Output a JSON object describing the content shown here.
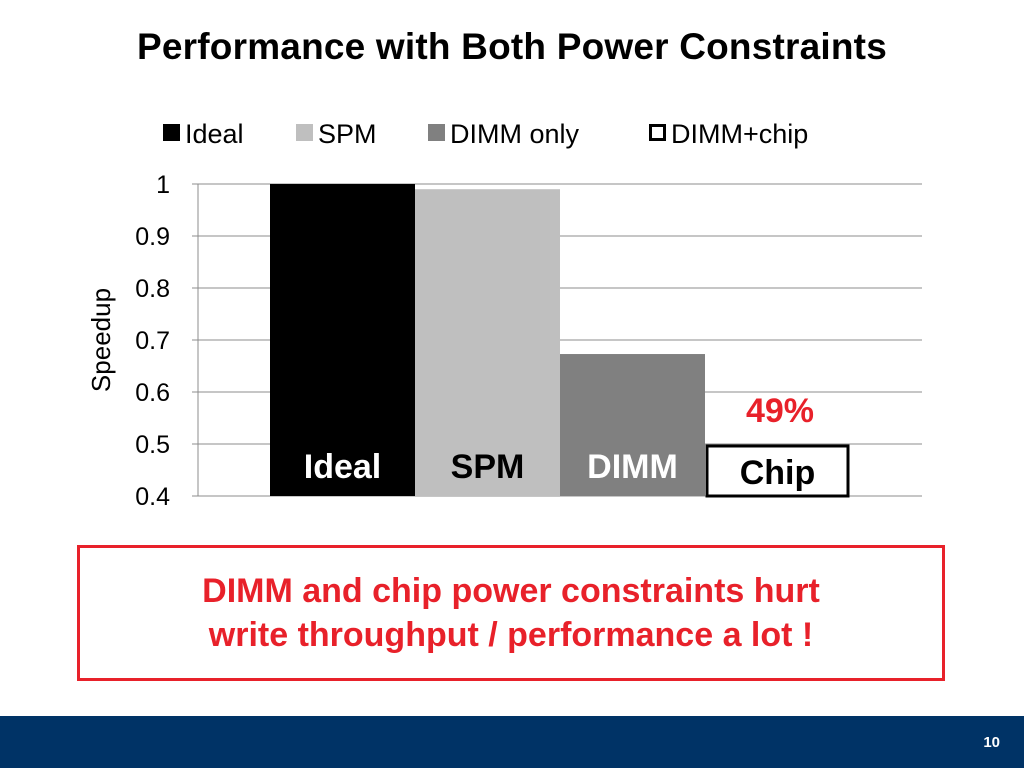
{
  "slide": {
    "title": "Performance with Both Power Constraints",
    "callout": {
      "line1": "DIMM and chip power constraints hurt",
      "line2": "write throughput / performance a lot !"
    },
    "page_number": "10"
  },
  "chart_data": {
    "type": "bar",
    "title": "",
    "ylabel": "Speedup",
    "xlabel": "",
    "ylim": [
      0.4,
      1.0
    ],
    "yticks": [
      0.4,
      0.5,
      0.6,
      0.7,
      0.8,
      0.9,
      1
    ],
    "ytick_labels": [
      "0.4",
      "0.5",
      "0.6",
      "0.7",
      "0.8",
      "0.9",
      "1"
    ],
    "grid": true,
    "legend_position": "top",
    "series": [
      {
        "name": "Ideal",
        "value": 1.0,
        "color": "#000000",
        "legend_marker": "filled",
        "bar_label": "Ideal",
        "bar_label_color": "#ffffff"
      },
      {
        "name": "SPM",
        "value": 0.99,
        "color": "#bfbfbf",
        "legend_marker": "filled",
        "bar_label": "SPM",
        "bar_label_color": "#000000"
      },
      {
        "name": "DIMM only",
        "value": 0.673,
        "color": "#808080",
        "legend_marker": "filled",
        "bar_label": "DIMM",
        "bar_label_color": "#ffffff"
      },
      {
        "name": "DIMM+chip",
        "value": 0.4,
        "color": "#ffffff",
        "legend_marker": "outline",
        "bar_label": "Chip",
        "bar_label_color": "#000000",
        "boxed": true
      }
    ],
    "annotation": {
      "text": "49%",
      "color": "#e8212a"
    }
  }
}
